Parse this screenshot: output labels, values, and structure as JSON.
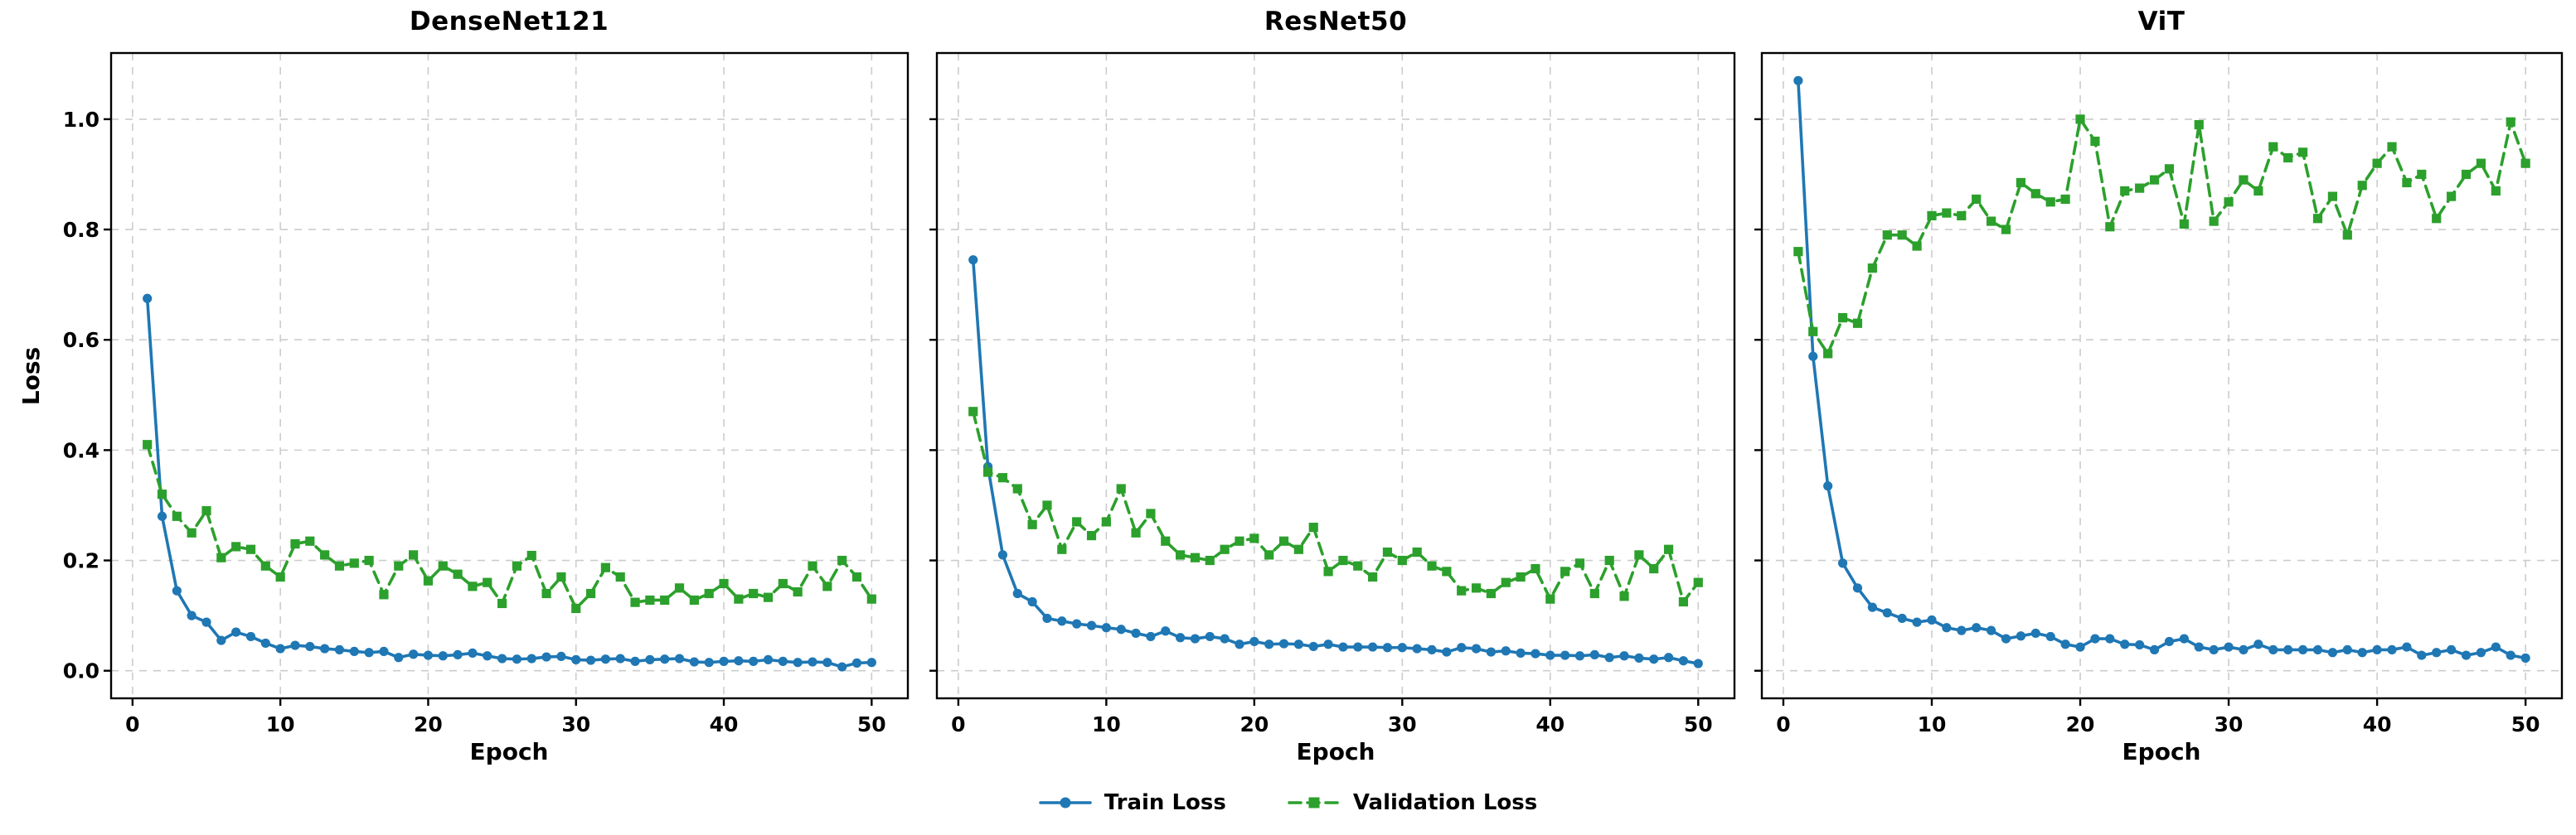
{
  "figure": {
    "ylabel": "Loss",
    "xlabel": "Epoch",
    "background": "#ffffff",
    "grid_color": "#cccccc",
    "spine_color": "#000000",
    "legend": [
      {
        "label": "Train Loss",
        "color": "#1f77b4",
        "marker": "circle",
        "style": "solid"
      },
      {
        "label": "Validation Loss",
        "color": "#2ca02c",
        "marker": "square",
        "style": "dashed"
      }
    ]
  },
  "epochs": [
    1,
    2,
    3,
    4,
    5,
    6,
    7,
    8,
    9,
    10,
    11,
    12,
    13,
    14,
    15,
    16,
    17,
    18,
    19,
    20,
    21,
    22,
    23,
    24,
    25,
    26,
    27,
    28,
    29,
    30,
    31,
    32,
    33,
    34,
    35,
    36,
    37,
    38,
    39,
    40,
    41,
    42,
    43,
    44,
    45,
    46,
    47,
    48,
    49,
    50
  ],
  "chart_data": [
    {
      "type": "line",
      "title": "DenseNet121",
      "xlabel": "Epoch",
      "ylabel": "Loss",
      "xlim": [
        -1.45,
        52.45
      ],
      "ylim": [
        -0.05,
        1.12
      ],
      "xticks": [
        0,
        10,
        20,
        30,
        40,
        50
      ],
      "yticks": [
        0.0,
        0.2,
        0.4,
        0.6,
        0.8,
        1.0
      ],
      "grid": true,
      "show_ytick_labels": true,
      "series": [
        {
          "name": "Train Loss",
          "color": "#1f77b4",
          "style": "solid",
          "marker": "circle",
          "values": [
            0.675,
            0.28,
            0.145,
            0.1,
            0.088,
            0.055,
            0.07,
            0.062,
            0.05,
            0.04,
            0.046,
            0.044,
            0.04,
            0.038,
            0.035,
            0.033,
            0.035,
            0.024,
            0.03,
            0.028,
            0.027,
            0.029,
            0.032,
            0.027,
            0.022,
            0.021,
            0.022,
            0.025,
            0.026,
            0.02,
            0.019,
            0.021,
            0.022,
            0.017,
            0.02,
            0.021,
            0.022,
            0.016,
            0.015,
            0.017,
            0.018,
            0.017,
            0.02,
            0.017,
            0.015,
            0.016,
            0.015,
            0.007,
            0.014,
            0.015
          ]
        },
        {
          "name": "Validation Loss",
          "color": "#2ca02c",
          "style": "dashed",
          "marker": "square",
          "values": [
            0.41,
            0.32,
            0.28,
            0.25,
            0.29,
            0.205,
            0.225,
            0.22,
            0.19,
            0.17,
            0.23,
            0.235,
            0.21,
            0.19,
            0.195,
            0.2,
            0.138,
            0.19,
            0.21,
            0.163,
            0.19,
            0.175,
            0.153,
            0.16,
            0.122,
            0.19,
            0.209,
            0.14,
            0.17,
            0.113,
            0.14,
            0.187,
            0.17,
            0.124,
            0.128,
            0.128,
            0.15,
            0.128,
            0.14,
            0.158,
            0.13,
            0.14,
            0.133,
            0.158,
            0.143,
            0.19,
            0.153,
            0.2,
            0.17,
            0.13
          ]
        }
      ]
    },
    {
      "type": "line",
      "title": "ResNet50",
      "xlabel": "Epoch",
      "ylabel": "Loss",
      "xlim": [
        -1.45,
        52.45
      ],
      "ylim": [
        -0.05,
        1.12
      ],
      "xticks": [
        0,
        10,
        20,
        30,
        40,
        50
      ],
      "yticks": [
        0.0,
        0.2,
        0.4,
        0.6,
        0.8,
        1.0
      ],
      "grid": true,
      "show_ytick_labels": false,
      "series": [
        {
          "name": "Train Loss",
          "color": "#1f77b4",
          "style": "solid",
          "marker": "circle",
          "values": [
            0.745,
            0.37,
            0.21,
            0.14,
            0.125,
            0.095,
            0.09,
            0.085,
            0.082,
            0.078,
            0.075,
            0.068,
            0.062,
            0.072,
            0.06,
            0.058,
            0.062,
            0.058,
            0.048,
            0.053,
            0.048,
            0.049,
            0.048,
            0.044,
            0.048,
            0.043,
            0.043,
            0.043,
            0.042,
            0.042,
            0.04,
            0.038,
            0.034,
            0.042,
            0.04,
            0.034,
            0.036,
            0.032,
            0.031,
            0.028,
            0.028,
            0.027,
            0.029,
            0.024,
            0.027,
            0.023,
            0.021,
            0.024,
            0.018,
            0.013
          ]
        },
        {
          "name": "Validation Loss",
          "color": "#2ca02c",
          "style": "dashed",
          "marker": "square",
          "values": [
            0.47,
            0.36,
            0.35,
            0.33,
            0.265,
            0.3,
            0.22,
            0.27,
            0.245,
            0.27,
            0.33,
            0.25,
            0.285,
            0.235,
            0.21,
            0.205,
            0.2,
            0.22,
            0.235,
            0.24,
            0.21,
            0.235,
            0.22,
            0.26,
            0.18,
            0.2,
            0.19,
            0.17,
            0.215,
            0.2,
            0.215,
            0.19,
            0.18,
            0.145,
            0.15,
            0.14,
            0.16,
            0.17,
            0.185,
            0.13,
            0.18,
            0.195,
            0.14,
            0.2,
            0.135,
            0.21,
            0.185,
            0.22,
            0.125,
            0.16
          ]
        }
      ]
    },
    {
      "type": "line",
      "title": "ViT",
      "xlabel": "Epoch",
      "ylabel": "Loss",
      "xlim": [
        -1.45,
        52.45
      ],
      "ylim": [
        -0.05,
        1.12
      ],
      "xticks": [
        0,
        10,
        20,
        30,
        40,
        50
      ],
      "yticks": [
        0.0,
        0.2,
        0.4,
        0.6,
        0.8,
        1.0
      ],
      "grid": true,
      "show_ytick_labels": false,
      "series": [
        {
          "name": "Train Loss",
          "color": "#1f77b4",
          "style": "solid",
          "marker": "circle",
          "values": [
            1.07,
            0.57,
            0.335,
            0.195,
            0.15,
            0.115,
            0.105,
            0.095,
            0.088,
            0.092,
            0.078,
            0.073,
            0.078,
            0.073,
            0.058,
            0.063,
            0.068,
            0.062,
            0.048,
            0.043,
            0.058,
            0.058,
            0.048,
            0.047,
            0.038,
            0.053,
            0.058,
            0.043,
            0.038,
            0.043,
            0.038,
            0.048,
            0.038,
            0.038,
            0.038,
            0.038,
            0.033,
            0.038,
            0.033,
            0.038,
            0.038,
            0.043,
            0.028,
            0.033,
            0.038,
            0.028,
            0.033,
            0.043,
            0.028,
            0.023
          ]
        },
        {
          "name": "Validation Loss",
          "color": "#2ca02c",
          "style": "dashed",
          "marker": "square",
          "values": [
            0.76,
            0.615,
            0.575,
            0.64,
            0.63,
            0.73,
            0.79,
            0.79,
            0.77,
            0.825,
            0.83,
            0.825,
            0.855,
            0.815,
            0.8,
            0.885,
            0.865,
            0.85,
            0.855,
            1.0,
            0.96,
            0.805,
            0.87,
            0.875,
            0.89,
            0.91,
            0.81,
            0.99,
            0.815,
            0.85,
            0.89,
            0.87,
            0.95,
            0.93,
            0.94,
            0.82,
            0.86,
            0.79,
            0.88,
            0.92,
            0.95,
            0.885,
            0.9,
            0.82,
            0.86,
            0.9,
            0.92,
            0.87,
            0.995,
            0.92
          ]
        }
      ]
    }
  ]
}
